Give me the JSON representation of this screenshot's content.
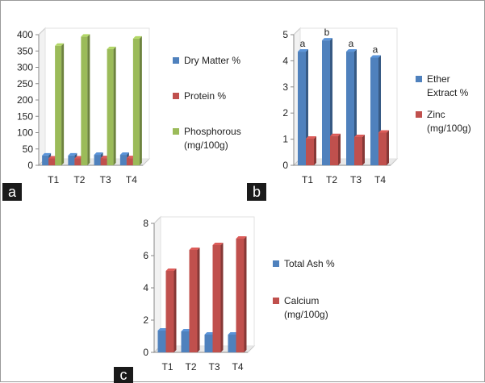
{
  "panels": [
    {
      "tag": "a",
      "chart_data": {
        "type": "bar",
        "categories": [
          "T1",
          "T2",
          "T3",
          "T4"
        ],
        "ylim": [
          0,
          400
        ],
        "yticks": [
          0,
          50,
          100,
          150,
          200,
          250,
          300,
          350,
          400
        ],
        "series": [
          {
            "name": "Dry Matter %",
            "color": "#4f81bd",
            "values": [
              30,
              30,
              32,
              32
            ]
          },
          {
            "name": "Protein %",
            "color": "#c0504d",
            "values": [
              21,
              21,
              22,
              22
            ]
          },
          {
            "name": "Phosphorous (mg/100g)",
            "color": "#9bbb59",
            "values": [
              366,
              394,
              356,
              388
            ]
          }
        ],
        "legend_position": "right",
        "title": "",
        "xlabel": "",
        "ylabel": ""
      }
    },
    {
      "tag": "b",
      "chart_data": {
        "type": "bar",
        "categories": [
          "T1",
          "T2",
          "T3",
          "T4"
        ],
        "ylim": [
          0,
          5
        ],
        "yticks": [
          0,
          1,
          2,
          3,
          4,
          5
        ],
        "series": [
          {
            "name": "Ether Extract %",
            "color": "#4f81bd",
            "values": [
              4.35,
              4.78,
              4.35,
              4.12
            ]
          },
          {
            "name": "Zinc (mg/100g)",
            "color": "#c0504d",
            "values": [
              1.02,
              1.12,
              1.08,
              1.25
            ]
          }
        ],
        "annotations": [
          "a",
          "b",
          "a",
          "a"
        ],
        "legend_position": "right",
        "title": "",
        "xlabel": "",
        "ylabel": ""
      }
    },
    {
      "tag": "c",
      "chart_data": {
        "type": "bar",
        "categories": [
          "T1",
          "T2",
          "T3",
          "T4"
        ],
        "ylim": [
          0,
          8
        ],
        "yticks": [
          0,
          2,
          4,
          6,
          8
        ],
        "series": [
          {
            "name": "Total Ash %",
            "color": "#4f81bd",
            "values": [
              1.35,
              1.3,
              1.1,
              1.1
            ]
          },
          {
            "name": "Calcium (mg/100g)",
            "color": "#c0504d",
            "values": [
              5.05,
              6.35,
              6.65,
              7.05
            ]
          }
        ],
        "legend_position": "right",
        "title": "",
        "xlabel": "",
        "ylabel": ""
      }
    }
  ]
}
